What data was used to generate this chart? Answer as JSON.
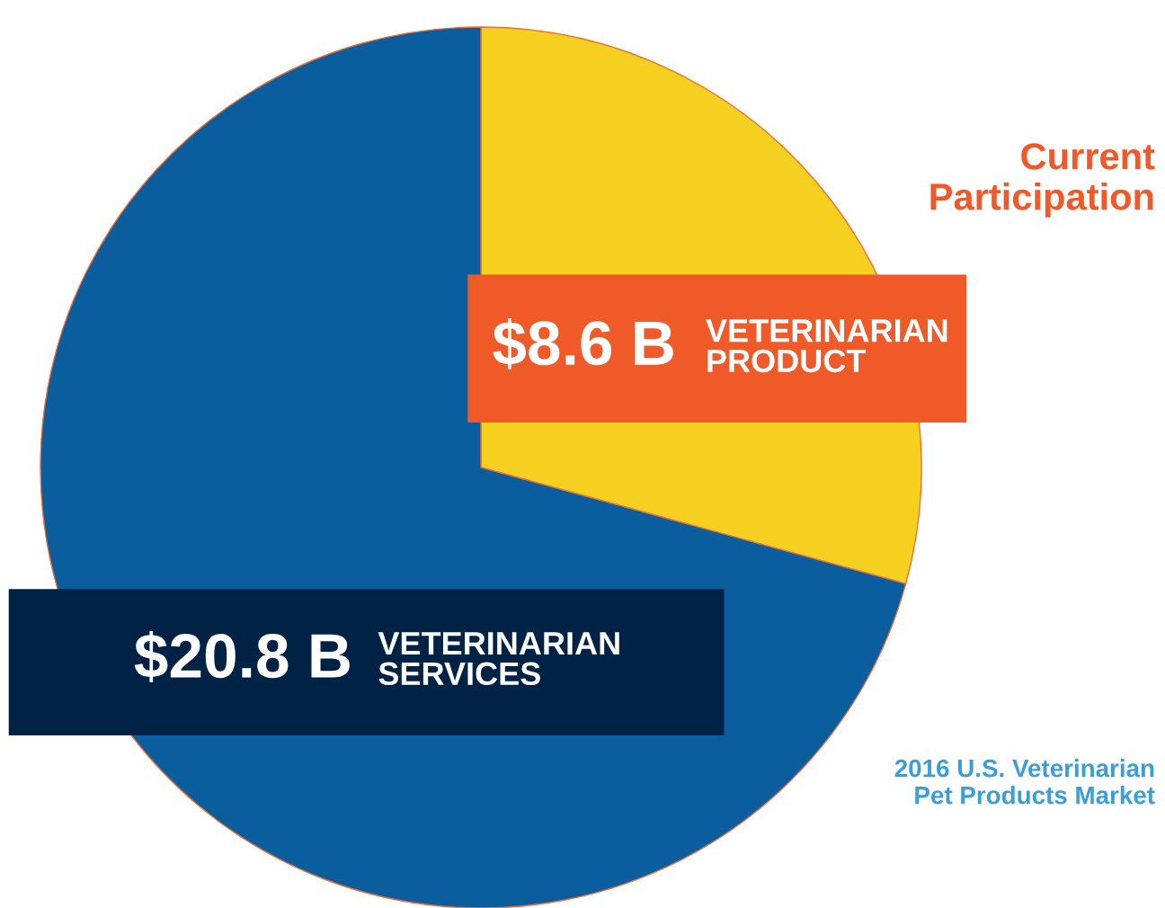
{
  "chart_data": {
    "type": "pie",
    "categories": [
      "VETERINARIAN PRODUCT",
      "VETERINARIAN SERVICES"
    ],
    "values": [
      8.6,
      20.8
    ],
    "value_labels": [
      "$8.6 B",
      "$20.8 B"
    ],
    "colors": [
      "#f5d020",
      "#0a5e9e"
    ],
    "legend": false,
    "annotations": [
      "Current\nParticipation",
      "2016 U.S. Veterinarian\nPet Products Market"
    ]
  }
}
